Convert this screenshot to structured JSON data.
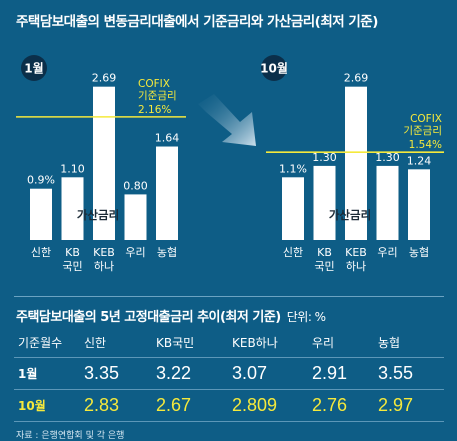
{
  "title": "주택담보대출의 변동금리대출에서 기준금리와 가산금리(최저 기준)",
  "chart_data": [
    {
      "type": "bar",
      "month_label": "1월",
      "categories": [
        "신한",
        "KB국민",
        "KEB하나",
        "우리",
        "농협"
      ],
      "category_lines": [
        [
          "신한"
        ],
        [
          "KB",
          "국민"
        ],
        [
          "KEB",
          "하나"
        ],
        [
          "우리"
        ],
        [
          "농협"
        ]
      ],
      "values": [
        0.9,
        1.1,
        2.69,
        0.8,
        1.64
      ],
      "value_labels": [
        "0.9%",
        "1.10",
        "2.69",
        "0.80",
        "1.64"
      ],
      "reference_line": {
        "name_lines": [
          "COFIX",
          "기준금리"
        ],
        "value": 2.16,
        "value_label": "2.16%"
      },
      "bar_label": "가산금리"
    },
    {
      "type": "bar",
      "month_label": "10월",
      "categories": [
        "신한",
        "KB국민",
        "KEB하나",
        "우리",
        "농협"
      ],
      "category_lines": [
        [
          "신한"
        ],
        [
          "KB",
          "국민"
        ],
        [
          "KEB",
          "하나"
        ],
        [
          "우리"
        ],
        [
          "농협"
        ]
      ],
      "values": [
        1.1,
        1.3,
        2.69,
        1.3,
        1.24
      ],
      "value_labels": [
        "1.1%",
        "1.30",
        "2.69",
        "1.30",
        "1.24"
      ],
      "reference_line": {
        "name_lines": [
          "COFIX",
          "기준금리"
        ],
        "value": 1.54,
        "value_label": "1.54%"
      },
      "bar_label": "가산금리"
    }
  ],
  "table": {
    "title": "주택담보대출의 5년 고정대출금리 추이(최저 기준)",
    "unit": "단위: %",
    "headers": [
      "기준월수",
      "신한",
      "KB국민",
      "KEB하나",
      "우리",
      "농협"
    ],
    "rows": [
      {
        "month": "1월",
        "values": [
          "3.35",
          "3.22",
          "3.07",
          "2.91",
          "3.55"
        ]
      },
      {
        "month": "10월",
        "values": [
          "2.83",
          "2.67",
          "2.809",
          "2.76",
          "2.97"
        ]
      }
    ]
  },
  "source": "자료 : 은행연합회 및 각 은행",
  "colors": {
    "background": "#0e5d86",
    "bar": "#ffffff",
    "highlight": "#f5e93c",
    "badge": "#0b2f4a"
  }
}
